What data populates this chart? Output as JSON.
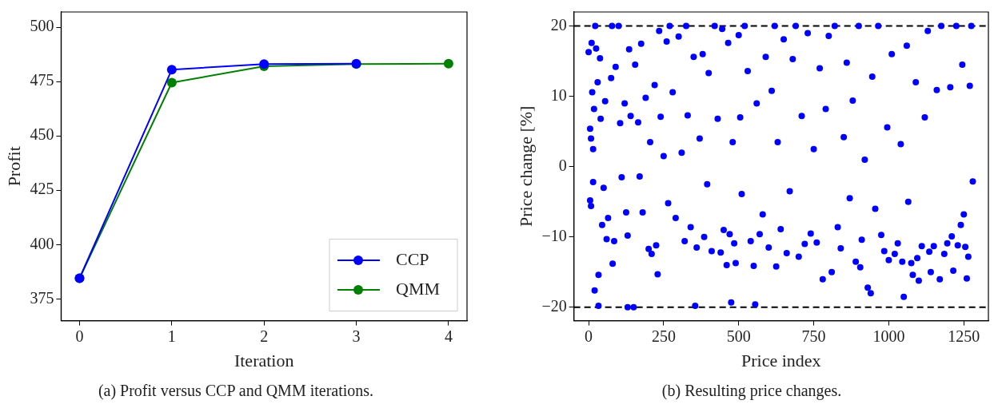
{
  "chart_data": [
    {
      "type": "line",
      "xlabel": "Iteration",
      "ylabel": "Profit",
      "x": [
        0,
        1,
        2,
        3,
        4
      ],
      "xlim": [
        -0.2,
        4.2
      ],
      "ylim": [
        365,
        507
      ],
      "xticks": [
        0,
        1,
        2,
        3,
        4
      ],
      "yticks": [
        375,
        400,
        425,
        450,
        475,
        500
      ],
      "legend": "bottom right",
      "marker": "circle",
      "line_style": "solid",
      "series": [
        {
          "name": "CCP",
          "color": "#0000ff",
          "x": [
            0,
            1,
            2,
            3
          ],
          "values": [
            384.5,
            480.5,
            483,
            483.2
          ]
        },
        {
          "name": "QMM",
          "color": "#008000",
          "values": [
            384.5,
            474.5,
            482,
            483,
            483.2
          ]
        }
      ],
      "annotations": [
        "(a) Profit versus CCP and QMM iterations."
      ]
    },
    {
      "type": "scatter",
      "xlabel": "Price index",
      "ylabel": "Price change [%]",
      "xlim": [
        -49,
        1332
      ],
      "ylim": [
        -21.9,
        22
      ],
      "xticks": [
        0,
        250,
        500,
        750,
        1000,
        1250
      ],
      "yticks": [
        {
          "value": -20,
          "label": "−20"
        },
        {
          "value": -10,
          "label": "−10"
        },
        0,
        10,
        20
      ],
      "legend": false,
      "marker": "circle",
      "ref_lines": [
        {
          "axis": "y",
          "value": 20,
          "color": "#000000",
          "line_style": "dashed"
        },
        {
          "axis": "y",
          "value": -20,
          "color": "#000000",
          "line_style": "dashed"
        }
      ],
      "series": [
        {
          "color": "#0000ff",
          "x": [
            0,
            5,
            5,
            8,
            8,
            10,
            12,
            15,
            15,
            18,
            20,
            22,
            25,
            30,
            33,
            33,
            38,
            40,
            45,
            50,
            55,
            60,
            65,
            75,
            78,
            80,
            85,
            90,
            100,
            105,
            110,
            120,
            125,
            130,
            130,
            135,
            140,
            150,
            155,
            165,
            170,
            175,
            180,
            190,
            200,
            205,
            210,
            220,
            225,
            230,
            235,
            240,
            250,
            260,
            265,
            270,
            280,
            290,
            300,
            310,
            320,
            325,
            330,
            340,
            350,
            355,
            360,
            370,
            380,
            385,
            395,
            400,
            410,
            420,
            430,
            440,
            445,
            450,
            460,
            465,
            470,
            475,
            480,
            485,
            490,
            500,
            505,
            510,
            520,
            530,
            540,
            550,
            555,
            560,
            570,
            580,
            590,
            600,
            610,
            620,
            625,
            630,
            640,
            650,
            660,
            670,
            680,
            690,
            700,
            710,
            720,
            730,
            740,
            750,
            760,
            770,
            780,
            790,
            800,
            810,
            820,
            830,
            840,
            850,
            860,
            870,
            880,
            890,
            900,
            905,
            910,
            920,
            930,
            940,
            945,
            955,
            965,
            975,
            985,
            995,
            1000,
            1010,
            1020,
            1030,
            1040,
            1045,
            1050,
            1060,
            1065,
            1075,
            1080,
            1090,
            1095,
            1100,
            1110,
            1120,
            1130,
            1135,
            1140,
            1150,
            1160,
            1170,
            1175,
            1185,
            1195,
            1205,
            1210,
            1215,
            1225,
            1230,
            1240,
            1245,
            1250,
            1255,
            1260,
            1265,
            1270,
            1275,
            1280
          ],
          "values": [
            16.3,
            5.4,
            -4.8,
            4,
            -5.6,
            17.6,
            10.6,
            2.5,
            -2.2,
            8.2,
            -17.6,
            20,
            16.8,
            12,
            -15.4,
            -19.8,
            15.4,
            6.8,
            -8.3,
            -3,
            9.3,
            -10.3,
            -7.3,
            12.6,
            20,
            -13.8,
            -10.6,
            14.2,
            20,
            6.2,
            -1.5,
            9,
            -6.5,
            -9.8,
            -20,
            16.7,
            7.2,
            -20,
            14.5,
            6.3,
            -1.4,
            17.5,
            -6.5,
            9.8,
            -11.7,
            3.5,
            -12.4,
            11.6,
            -11.2,
            -15.3,
            19.3,
            7.1,
            1.5,
            17.8,
            -5.2,
            20,
            10.6,
            -7.3,
            18.5,
            2,
            -10.6,
            20,
            7.3,
            -8.6,
            15.6,
            -19.8,
            -11.5,
            4,
            16,
            -10,
            -2.5,
            13.3,
            -12,
            20,
            6.8,
            -12.2,
            19.6,
            -9,
            -14,
            17.6,
            -9.6,
            -19.3,
            3.5,
            -10.9,
            -13.7,
            18.7,
            7,
            -3.9,
            20,
            13.6,
            -10.6,
            -14.1,
            -19.6,
            9,
            -9.6,
            -6.8,
            15.6,
            -11.5,
            10.8,
            20,
            -14.2,
            3.5,
            -8.9,
            18.1,
            -12.3,
            -3.5,
            15.3,
            20,
            -12.8,
            7.2,
            -11,
            19,
            -9.5,
            2.5,
            -10.8,
            14,
            -16,
            8.2,
            18.6,
            -15,
            20,
            -8.6,
            -11.6,
            4.2,
            14.8,
            -4.5,
            9.4,
            -13.5,
            20,
            -14.3,
            -10.4,
            1,
            -17.2,
            -18,
            12.8,
            -6,
            20,
            -9.7,
            -12,
            5.6,
            -13.3,
            16,
            -12.4,
            -10.9,
            3.2,
            -13.5,
            -18.5,
            17.2,
            -5,
            -13.7,
            -15.4,
            12,
            -13,
            -16.2,
            -11.3,
            7,
            19.3,
            -12.1,
            -15,
            -11.3,
            10.9,
            -16,
            20,
            -12.4,
            -10.9,
            11.3,
            -9.9,
            -14.8,
            20,
            -11.2,
            -8.3,
            14.5,
            -6.8,
            -11.4,
            -15.9,
            -12.8,
            11.5,
            20,
            -2.1
          ]
        }
      ],
      "annotations": [
        "(b) Resulting price changes."
      ]
    }
  ]
}
